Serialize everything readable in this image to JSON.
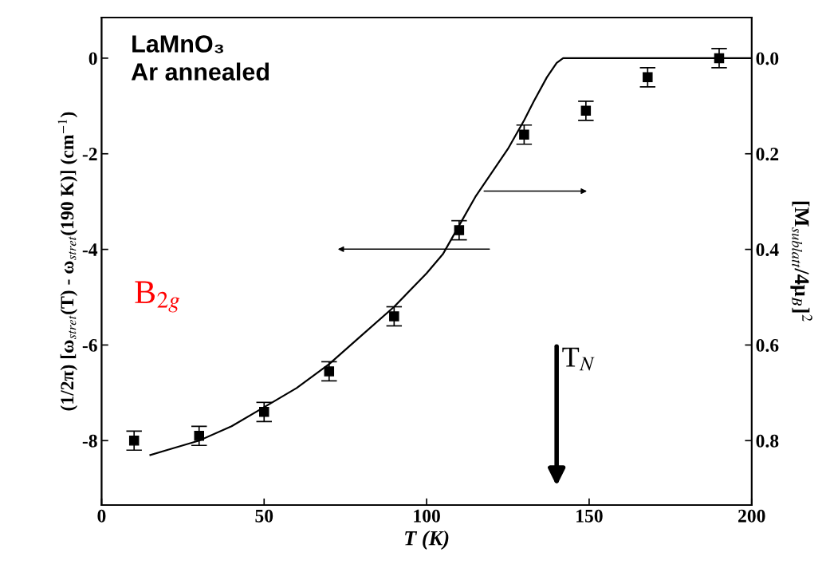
{
  "chart_data": {
    "type": "scatter",
    "xlabel": "T (K)",
    "ylabel": "(1/2π) [ω$_{stret}$(T) - ω$_{stret}$(190 K)] (cm$^{−1}$)",
    "y2label": "[M$_{sublatt}$/4μ$_{B}$]$^{2}$",
    "xlim": [
      0,
      200
    ],
    "ylim": [
      -9.35,
      0.85
    ],
    "y2lim": [
      0.935,
      -0.085
    ],
    "xticks": [
      0,
      50,
      100,
      150,
      200
    ],
    "yticks": [
      0,
      -2,
      -4,
      -6,
      -8
    ],
    "y2ticks": [
      {
        "value": 0,
        "label": "0.0"
      },
      {
        "value": 0.2,
        "label": "0.2"
      },
      {
        "value": 0.4,
        "label": "0.4"
      },
      {
        "value": 0.6,
        "label": "0.6"
      },
      {
        "value": 0.8,
        "label": "0.8"
      }
    ],
    "grid": false,
    "legend": false,
    "series": [
      {
        "type": "scatter",
        "color": "#000000",
        "marker": "square",
        "x": [
          10,
          30,
          50,
          70,
          90,
          110,
          130,
          149,
          168,
          190
        ],
        "values": [
          -8.0,
          -7.9,
          -7.4,
          -6.55,
          -5.4,
          -3.6,
          -1.6,
          -1.1,
          -0.4,
          0.0
        ],
        "errors": [
          0.2,
          0.2,
          0.2,
          0.2,
          0.2,
          0.2,
          0.2,
          0.2,
          0.2,
          0.2
        ]
      },
      {
        "type": "line",
        "axis": "y2",
        "color": "#000000",
        "marker": "none",
        "line_style": "solid",
        "x": [
          15,
          20,
          30,
          40,
          50,
          60,
          70,
          80,
          90,
          100,
          105,
          110,
          115,
          120,
          125,
          130,
          133,
          137,
          140,
          142,
          200
        ],
        "values": [
          0.83,
          0.82,
          0.8,
          0.77,
          0.73,
          0.69,
          0.64,
          0.58,
          0.52,
          0.45,
          0.41,
          0.35,
          0.29,
          0.24,
          0.19,
          0.13,
          0.09,
          0.04,
          0.01,
          0,
          0
        ]
      }
    ],
    "annotations": [
      "LaMnO₃\nAr annealed",
      "B$_{2g}$",
      "T$_{N}$"
    ]
  }
}
